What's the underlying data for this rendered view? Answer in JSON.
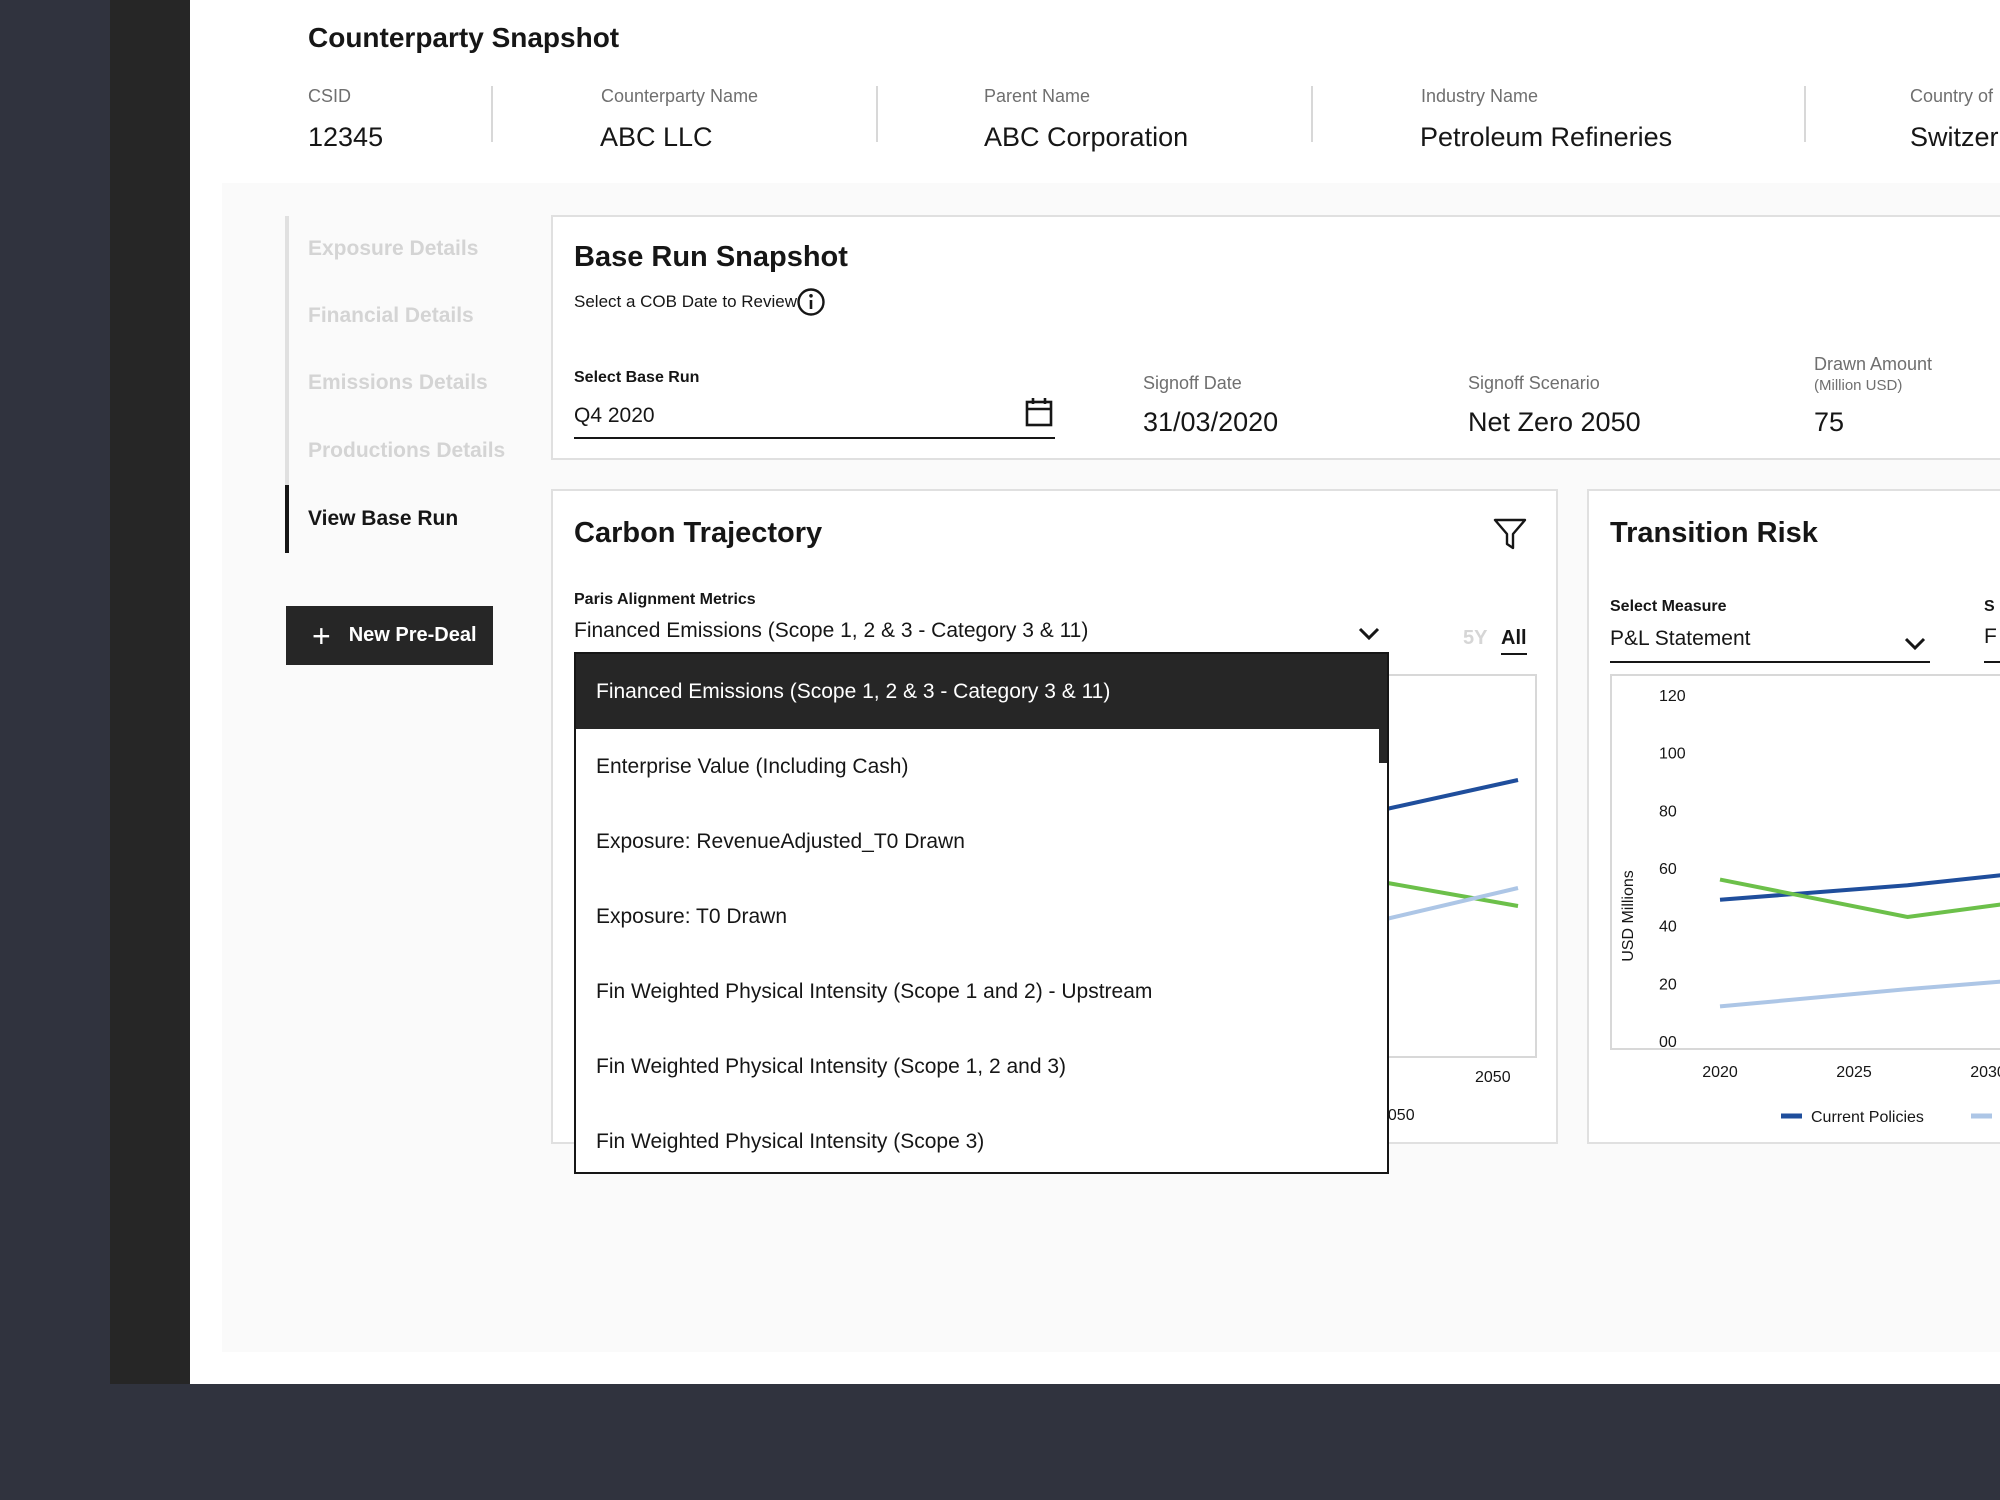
{
  "snapshot": {
    "title": "Counterparty Snapshot",
    "fields": [
      {
        "label": "CSID",
        "value": "12345"
      },
      {
        "label": "Counterparty Name",
        "value": "ABC LLC"
      },
      {
        "label": "Parent Name",
        "value": "ABC Corporation"
      },
      {
        "label": "Industry Name",
        "value": "Petroleum Refineries"
      },
      {
        "label": "Country of",
        "value": "Switzer"
      }
    ]
  },
  "sidebar": {
    "items": [
      {
        "label": "Exposure Details",
        "active": false
      },
      {
        "label": "Financial Details",
        "active": false
      },
      {
        "label": "Emissions Details",
        "active": false
      },
      {
        "label": "Productions Details",
        "active": false
      },
      {
        "label": "View Base Run",
        "active": true
      }
    ],
    "new_button_label": "New Pre-Deal",
    "new_button_icon": "plus-icon"
  },
  "base_run": {
    "title": "Base Run Snapshot",
    "subtitle": "Select a COB Date to Review",
    "info_icon": "info-icon",
    "select_label": "Select Base Run",
    "select_value": "Q4 2020",
    "calendar_icon": "calendar-icon",
    "signoff_date_label": "Signoff Date",
    "signoff_date_value": "31/03/2020",
    "signoff_scenario_label": "Signoff Scenario",
    "signoff_scenario_value": "Net Zero 2050",
    "drawn_label": "Drawn Amount",
    "drawn_unit": "(Million USD)",
    "drawn_value": "75"
  },
  "carbon": {
    "title": "Carbon Trajectory",
    "filter_icon": "filter-icon",
    "metric_label": "Paris Alignment Metrics",
    "metric_value": "Financed Emissions (Scope 1, 2 & 3 - Category 3 & 11)",
    "range_options": [
      "5Y",
      "All"
    ],
    "range_selected": "All",
    "x_tick_visible": "2050",
    "legend_partial": "2050",
    "dropdown_options": [
      "Financed Emissions (Scope 1, 2 & 3 - Category 3 & 11)",
      "Enterprise Value (Including Cash)",
      "Exposure: RevenueAdjusted_T0 Drawn",
      "Exposure: T0 Drawn",
      "Fin Weighted Physical Intensity (Scope 1 and 2) - Upstream",
      "Fin Weighted Physical Intensity (Scope 1, 2 and 3)",
      "Fin Weighted Physical Intensity (Scope 3)"
    ],
    "dropdown_selected_index": 0
  },
  "transition": {
    "title": "Transition Risk",
    "measure_label": "Select Measure",
    "measure_value": "P&L Statement",
    "second_label_partial": "S",
    "second_value_partial": "F",
    "colors": {
      "current": "#1f4e9c",
      "green": "#6cc04a",
      "light": "#adc6e6"
    }
  },
  "chart_data": [
    {
      "type": "line",
      "title": "Transition Risk",
      "ylabel": "USD Millions",
      "y_ticks": [
        "00",
        "20",
        "40",
        "60",
        "80",
        "100",
        "120"
      ],
      "ylim": [
        0,
        120
      ],
      "x_ticks": [
        "2020",
        "2025",
        "2030"
      ],
      "x": [
        2020,
        2027,
        2031
      ],
      "series": [
        {
          "name": "Current Policies",
          "color": "#1f4e9c",
          "values": [
            49,
            54,
            58
          ]
        },
        {
          "color": "#6cc04a",
          "values": [
            56,
            43,
            48
          ]
        },
        {
          "color": "#adc6e6",
          "values": [
            12,
            18,
            21
          ]
        }
      ]
    },
    {
      "type": "line",
      "title": "Carbon Trajectory",
      "x_ticks": [
        "2050"
      ],
      "visible_segments": [
        {
          "color": "#1f4e9c",
          "from": [
            2045,
            91
          ],
          "to": [
            2050,
            100
          ]
        },
        {
          "color": "#6cc04a",
          "from": [
            2045,
            62
          ],
          "to": [
            2050,
            54
          ]
        },
        {
          "color": "#adc6e6",
          "from": [
            2045,
            44
          ],
          "to": [
            2050,
            55
          ]
        }
      ]
    }
  ]
}
